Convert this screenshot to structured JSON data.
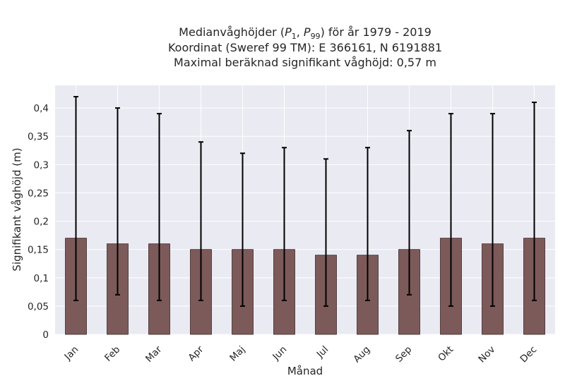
{
  "chart_data": {
    "type": "bar",
    "title_lines": [
      "Medianvåghöjder (P1, P99) för år 1979 - 2019",
      "Koordinat (Sweref 99 TM): E 366161, N 6191881",
      "Maximal beräknad signifikant våghöjd: 0,57 m"
    ],
    "xlabel": "Månad",
    "ylabel": "Signifikant våghöjd (m)",
    "categories": [
      "Jan",
      "Feb",
      "Mar",
      "Apr",
      "Maj",
      "Jun",
      "Jul",
      "Aug",
      "Sep",
      "Okt",
      "Nov",
      "Dec"
    ],
    "values": [
      0.17,
      0.16,
      0.16,
      0.15,
      0.15,
      0.15,
      0.14,
      0.14,
      0.15,
      0.17,
      0.16,
      0.17
    ],
    "error_low": [
      0.06,
      0.07,
      0.06,
      0.06,
      0.05,
      0.06,
      0.05,
      0.06,
      0.07,
      0.05,
      0.05,
      0.06
    ],
    "error_high": [
      0.42,
      0.4,
      0.39,
      0.34,
      0.32,
      0.33,
      0.31,
      0.33,
      0.36,
      0.39,
      0.39,
      0.41
    ],
    "ylim": [
      0,
      0.44
    ],
    "yticks": [
      0,
      0.05,
      0.1,
      0.15,
      0.2,
      0.25,
      0.3,
      0.35,
      0.4
    ],
    "ytick_labels": [
      "0",
      "0,05",
      "0,1",
      "0,15",
      "0,2",
      "0,25",
      "0,3",
      "0,35",
      "0,4"
    ],
    "grid": true,
    "colors": {
      "bar_fill": "#7d5a5a",
      "bar_edge": "#3a2828",
      "error_bar": "#000000",
      "plot_background": "#eaeaf2",
      "grid": "#ffffff"
    }
  }
}
